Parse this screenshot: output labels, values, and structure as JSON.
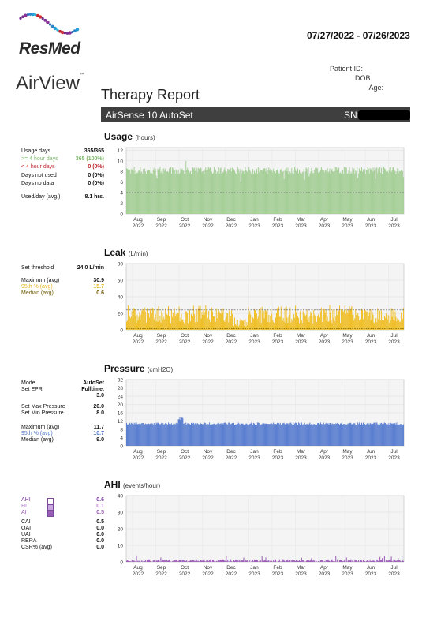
{
  "header": {
    "brand": "ResMed",
    "product": "AirView",
    "trademark": "™",
    "date_range": "07/27/2022 - 07/26/2023",
    "patient_id_label": "Patient ID:",
    "dob_label": "DOB:",
    "age_label": "Age:",
    "report_title": "Therapy Report",
    "device": "AirSense 10 AutoSet",
    "sn_label": "SN:"
  },
  "month_ticks": [
    "Aug 2022",
    "Sep 2022",
    "Oct 2022",
    "Nov 2022",
    "Dec 2022",
    "Jan 2023",
    "Feb 2023",
    "Mar 2023",
    "Apr 2023",
    "May 2023",
    "Jun 2023",
    "Jul 2023"
  ],
  "usage": {
    "title": "Usage",
    "unit": "(hours)",
    "stats": [
      {
        "label": "Usage days",
        "value": "365/365",
        "color": "#111"
      },
      {
        "label": ">= 4 hour days",
        "value": "365 (100%)",
        "color": "#7dba6a"
      },
      {
        "label": "< 4 hour days",
        "value": "0 (0%)",
        "color": "#c0262d"
      },
      {
        "label": "Days not used",
        "value": "0 (0%)",
        "color": "#111"
      },
      {
        "label": "Days no data",
        "value": "0 (0%)",
        "color": "#111"
      },
      {
        "label": "Used/day (avg.)",
        "value": "8.1 hrs.",
        "color": "#111"
      }
    ]
  },
  "leak": {
    "title": "Leak",
    "unit": "(L/min)",
    "stats": [
      {
        "label": "Set threshold",
        "value": "24.0 L/min",
        "color": "#111"
      },
      {
        "label": "Maximum (avg)",
        "value": "30.9",
        "color": "#111"
      },
      {
        "label": "95th % (avg)",
        "value": "15.7",
        "color": "#e6b51f"
      },
      {
        "label": "Median (avg)",
        "value": "0.6",
        "color": "#6b5a00"
      }
    ]
  },
  "pressure": {
    "title": "Pressure",
    "unit": "(cmH2O)",
    "stats": [
      {
        "label": "Mode",
        "value": "AutoSet",
        "color": "#111"
      },
      {
        "label": "Set EPR",
        "value": "Fulltime,",
        "value2": "3.0",
        "color": "#111"
      },
      {
        "label": "Set Max Pressure",
        "value": "20.0",
        "color": "#111"
      },
      {
        "label": "Set Min Pressure",
        "value": "8.0",
        "color": "#111"
      },
      {
        "label": "Maximum (avg)",
        "value": "11.7",
        "color": "#111"
      },
      {
        "label": "95th % (avg)",
        "value": "10.7",
        "color": "#4a6fc0"
      },
      {
        "label": "Median (avg)",
        "value": "9.0",
        "color": "#111"
      }
    ]
  },
  "ahi": {
    "title": "AHI",
    "unit": "(events/hour)",
    "stats": [
      {
        "label": "AHI",
        "value": "0.6",
        "color": "#7a3fa0"
      },
      {
        "label": "HI",
        "value": "0.1",
        "color": "#b07ac8"
      },
      {
        "label": "AI",
        "value": "0.5",
        "color": "#9a5ab8"
      },
      {
        "label": "CAI",
        "value": "0.5",
        "color": "#111"
      },
      {
        "label": "OAI",
        "value": "0.0",
        "color": "#111"
      },
      {
        "label": "UAI",
        "value": "0.0",
        "color": "#111"
      },
      {
        "label": "RERA",
        "value": "0.0",
        "color": "#111"
      },
      {
        "label": "CSR% (avg)",
        "value": "0.0",
        "color": "#111"
      }
    ]
  },
  "chart_data": [
    {
      "type": "bar",
      "title": "Usage",
      "series_color": "#a6cf98",
      "y_ticks": [
        0,
        2,
        4,
        6,
        8,
        10,
        12
      ],
      "ylim": [
        0,
        12.5
      ],
      "reference_line": 4,
      "typical_value": 8.1,
      "peak_value": 10,
      "grid": true
    },
    {
      "type": "bar",
      "title": "Leak",
      "series_color": "#f0c02a",
      "y_ticks": [
        0,
        20,
        40,
        60,
        80
      ],
      "y_tick_labels": [
        "0",
        "20",
        "40",
        "60",
        "80"
      ],
      "ylim": [
        0,
        80
      ],
      "threshold_line": 24.0,
      "typical_value": 15.7,
      "median_value": 0.6,
      "grid": true
    },
    {
      "type": "bar",
      "title": "Pressure",
      "series_color": "#5b7fd0",
      "y_ticks": [
        0,
        4,
        8,
        12,
        16,
        20,
        24,
        28,
        32
      ],
      "ylim": [
        0,
        32
      ],
      "typical_value": 10.7,
      "peak_value": 14,
      "grid": true
    },
    {
      "type": "bar",
      "title": "AHI",
      "series_color": "#9b5cb8",
      "y_ticks": [
        0,
        10,
        20,
        30,
        40
      ],
      "ylim": [
        0,
        40
      ],
      "typical_value": 0.6,
      "peak_value": 4,
      "grid": true
    }
  ]
}
